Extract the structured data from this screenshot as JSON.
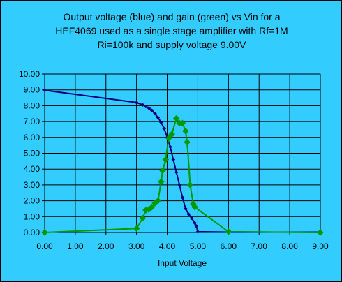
{
  "chart_data": {
    "type": "line",
    "title_lines": [
      "Output voltage (blue) and gain (green) vs Vin for a",
      "HEF4069 used as a single stage amplifier with Rf=1M",
      "Ri=100k and supply voltage 9.00V"
    ],
    "xlabel": "Input Voltage",
    "ylabel": "",
    "xlim": [
      0,
      9
    ],
    "ylim": [
      0,
      10
    ],
    "x_ticks": [
      "0.00",
      "1.00",
      "2.00",
      "3.00",
      "4.00",
      "5.00",
      "6.00",
      "7.00",
      "8.00",
      "9.00"
    ],
    "y_ticks": [
      "0.00",
      "1.00",
      "2.00",
      "3.00",
      "4.00",
      "5.00",
      "6.00",
      "7.00",
      "8.00",
      "9.00",
      "10.00"
    ],
    "grid": true,
    "legend": "none",
    "series": [
      {
        "color": "#000080",
        "marker": "diamond-small",
        "points": [
          [
            0.0,
            8.98
          ],
          [
            3.0,
            8.2
          ],
          [
            3.2,
            8.05
          ],
          [
            3.3,
            7.95
          ],
          [
            3.4,
            7.85
          ],
          [
            3.5,
            7.7
          ],
          [
            3.6,
            7.5
          ],
          [
            3.7,
            7.25
          ],
          [
            3.8,
            6.95
          ],
          [
            3.9,
            6.55
          ],
          [
            4.0,
            6.0
          ],
          [
            4.1,
            5.4
          ],
          [
            4.2,
            4.6
          ],
          [
            4.3,
            3.8
          ],
          [
            4.4,
            3.0
          ],
          [
            4.5,
            2.2
          ],
          [
            4.6,
            1.5
          ],
          [
            4.7,
            1.15
          ],
          [
            4.8,
            0.9
          ],
          [
            4.9,
            0.6
          ],
          [
            4.95,
            0.4
          ],
          [
            5.0,
            0.05
          ],
          [
            6.0,
            0.02
          ],
          [
            9.0,
            0.02
          ]
        ]
      },
      {
        "color": "#009900",
        "marker": "diamond",
        "points": [
          [
            0.0,
            0.0
          ],
          [
            3.0,
            0.25
          ],
          [
            3.2,
            0.9
          ],
          [
            3.3,
            1.4
          ],
          [
            3.4,
            1.45
          ],
          [
            3.5,
            1.6
          ],
          [
            3.6,
            1.85
          ],
          [
            3.7,
            2.0
          ],
          [
            3.8,
            3.2
          ],
          [
            3.85,
            3.9
          ],
          [
            3.95,
            4.6
          ],
          [
            4.05,
            5.95
          ],
          [
            4.15,
            6.2
          ],
          [
            4.3,
            7.2
          ],
          [
            4.4,
            6.9
          ],
          [
            4.5,
            6.9
          ],
          [
            4.6,
            6.4
          ],
          [
            4.65,
            5.7
          ],
          [
            4.75,
            3.0
          ],
          [
            4.85,
            1.8
          ],
          [
            4.9,
            1.6
          ],
          [
            6.0,
            0.05
          ],
          [
            9.0,
            0.0
          ]
        ]
      }
    ]
  }
}
